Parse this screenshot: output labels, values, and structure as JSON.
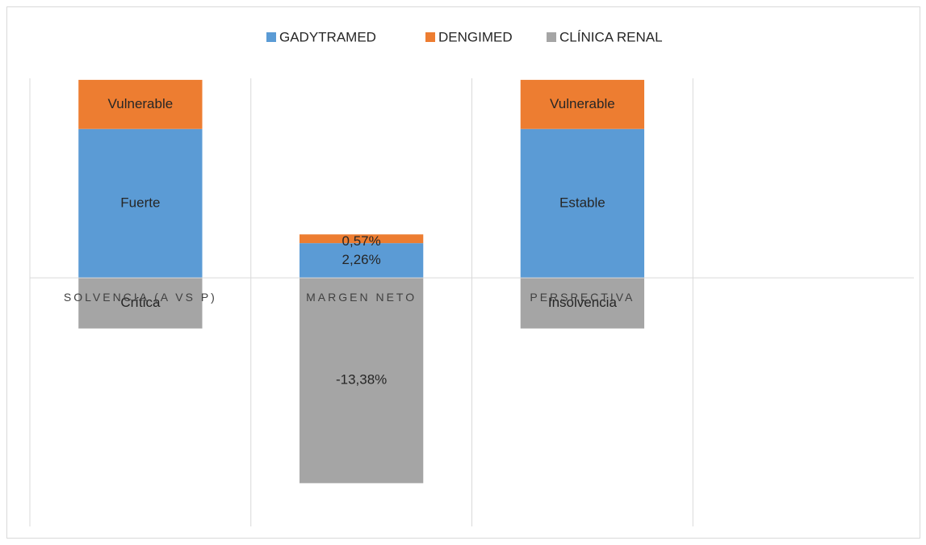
{
  "chart_data": {
    "type": "bar",
    "stacked": true,
    "categories": [
      "SOLVENCIA (A VS P)",
      "MARGEN NETO",
      "PERSPECTIVA",
      null
    ],
    "series": [
      {
        "name": "GADYTRAMED",
        "color": "#5b9bd5",
        "values": [
          9.7,
          2.26,
          9.7,
          null
        ],
        "value_labels": [
          "Fuerte",
          "2,26%",
          "Estable",
          null
        ]
      },
      {
        "name": "DENGIMED",
        "color": "#ed7d31",
        "values": [
          3.2,
          0.57,
          3.2,
          null
        ],
        "value_labels": [
          "Vulnerable",
          "0,57%",
          "Vulnerable",
          null
        ]
      },
      {
        "name": "CLÍNICA RENAL",
        "color": "#a5a5a5",
        "values": [
          -3.3,
          -13.38,
          -3.3,
          null
        ],
        "value_labels": [
          "Crítica",
          "-13,38%",
          "Insolvencia",
          null
        ]
      }
    ],
    "ylim": [
      -16.2,
      13
    ],
    "grid": true,
    "legend": "top"
  }
}
